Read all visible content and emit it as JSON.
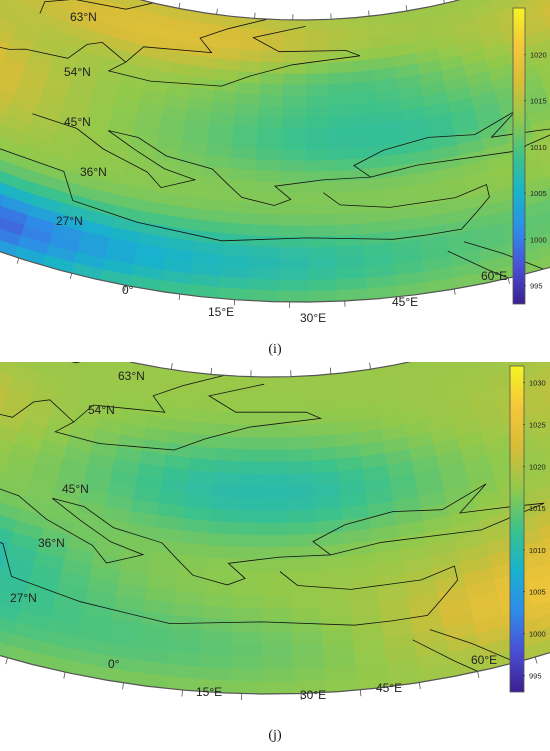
{
  "colors": {
    "colormap": [
      "#3b1f8f",
      "#4a4fd6",
      "#2f8ce8",
      "#18b3cc",
      "#3dc28a",
      "#92c94b",
      "#d7bd38",
      "#f5c73a",
      "#f3f522"
    ],
    "coastline": "#111111",
    "frame": "#555555",
    "background": "#ffffff"
  },
  "panels": [
    {
      "id": "i",
      "caption": "(i)",
      "lat_labels": [
        "63°N",
        "54°N",
        "45°N",
        "36°N",
        "27°N"
      ],
      "lon_labels": [
        "0°",
        "15°E",
        "30°E",
        "45°E",
        "60°E"
      ],
      "colorbar": {
        "ticks": [
          "1020",
          "1015",
          "1010",
          "1005",
          "1000",
          "995"
        ],
        "min": 993,
        "max": 1025
      },
      "field": {
        "base": 1013,
        "blobs": [
          {
            "lon": 0,
            "lat": 26,
            "sx": 12,
            "sy": 6,
            "a": -18
          },
          {
            "lon": 20,
            "lat": 28,
            "sx": 14,
            "sy": 6,
            "a": -6
          },
          {
            "lon": 30,
            "lat": 47,
            "sx": 13,
            "sy": 6,
            "a": -5
          },
          {
            "lon": 28,
            "lat": 56,
            "sx": 8,
            "sy": 5,
            "a": -3
          },
          {
            "lon": 55,
            "lat": 45,
            "sx": 13,
            "sy": 9,
            "a": 6
          },
          {
            "lon": -3,
            "lat": 48,
            "sx": 10,
            "sy": 8,
            "a": 7
          },
          {
            "lon": 15,
            "lat": 62,
            "sx": 14,
            "sy": 5,
            "a": 5
          },
          {
            "lon": 48,
            "lat": 60,
            "sx": 10,
            "sy": 5,
            "a": 4
          },
          {
            "lon": 45,
            "lat": 30,
            "sx": 12,
            "sy": 5,
            "a": -2
          }
        ]
      }
    },
    {
      "id": "j",
      "caption": "(j)",
      "lat_labels": [
        "63°N",
        "54°N",
        "45°N",
        "36°N",
        "27°N"
      ],
      "lon_labels": [
        "0°",
        "15°E",
        "30°E",
        "45°E",
        "60°E"
      ],
      "colorbar": {
        "ticks": [
          "1030",
          "1025",
          "1020",
          "1015",
          "1010",
          "1005",
          "1000",
          "995"
        ],
        "min": 993,
        "max": 1032
      },
      "field": {
        "base": 1018,
        "blobs": [
          {
            "lon": -5,
            "lat": 27,
            "sx": 10,
            "sy": 7,
            "a": -22
          },
          {
            "lon": 5,
            "lat": 36,
            "sx": 10,
            "sy": 6,
            "a": -8
          },
          {
            "lon": 25,
            "lat": 50,
            "sx": 12,
            "sy": 7,
            "a": -8
          },
          {
            "lon": 18,
            "lat": 28,
            "sx": 14,
            "sy": 6,
            "a": -4
          },
          {
            "lon": 55,
            "lat": 35,
            "sx": 12,
            "sy": 8,
            "a": 12
          },
          {
            "lon": 40,
            "lat": 30,
            "sx": 8,
            "sy": 6,
            "a": 6
          },
          {
            "lon": 0,
            "lat": 55,
            "sx": 9,
            "sy": 5,
            "a": 5
          },
          {
            "lon": 50,
            "lat": 55,
            "sx": 12,
            "sy": 6,
            "a": 3
          }
        ]
      }
    }
  ]
}
